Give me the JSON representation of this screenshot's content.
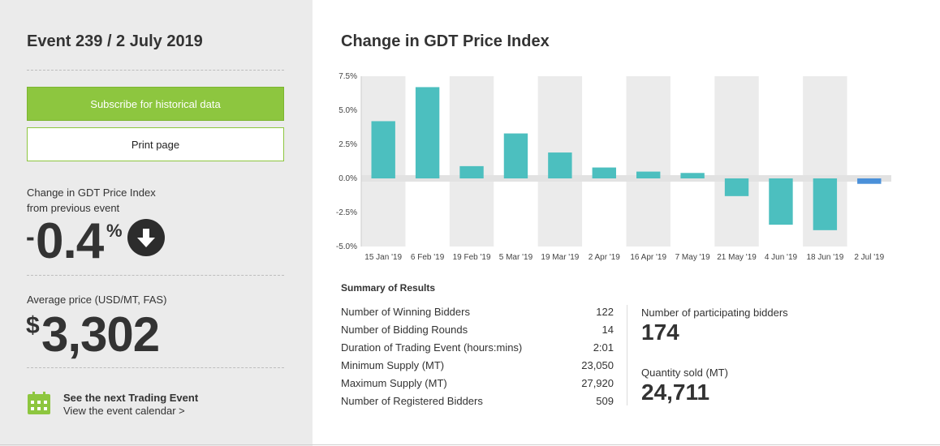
{
  "event": {
    "title": "Event 239 / 2 July 2019"
  },
  "buttons": {
    "subscribe": "Subscribe for historical data",
    "print": "Print page"
  },
  "change": {
    "label_line1": "Change in GDT Price Index",
    "label_line2": "from previous event",
    "sign": "-",
    "value": "0.4",
    "unit": "%",
    "direction": "down"
  },
  "average": {
    "label": "Average price (USD/MT, FAS)",
    "currency": "$",
    "value": "3,302"
  },
  "next_event": {
    "title": "See the next Trading Event",
    "link": "View the event calendar >"
  },
  "chart_section": {
    "title": "Change in GDT Price Index"
  },
  "chart_data": {
    "type": "bar",
    "categories": [
      "15 Jan '19",
      "6 Feb '19",
      "19 Feb '19",
      "5 Mar '19",
      "19 Mar '19",
      "2 Apr '19",
      "16 Apr '19",
      "7 May '19",
      "21 May '19",
      "4 Jun '19",
      "18 Jun '19",
      "2 Jul '19"
    ],
    "values": [
      4.2,
      6.7,
      0.9,
      3.3,
      1.9,
      0.8,
      0.5,
      0.4,
      -1.3,
      -3.4,
      -3.8,
      -0.4
    ],
    "ylim": [
      -5.0,
      7.5
    ],
    "yticks": [
      "7.5%",
      "5.0%",
      "2.5%",
      "0.0%",
      "-2.5%",
      "-5.0%"
    ],
    "ytick_values": [
      7.5,
      5.0,
      2.5,
      0.0,
      -2.5,
      -5.0
    ],
    "colors": {
      "bar": "#4cbfbf",
      "highlight": "#4a90d9",
      "band": "#ebebeb"
    },
    "highlight_index": 11,
    "grid": false
  },
  "summary": {
    "title": "Summary of Results",
    "rows": [
      {
        "label": "Number of Winning Bidders",
        "value": "122"
      },
      {
        "label": "Number of Bidding Rounds",
        "value": "14"
      },
      {
        "label": "Duration of Trading Event (hours:mins)",
        "value": "2:01"
      },
      {
        "label": "Minimum Supply (MT)",
        "value": "23,050"
      },
      {
        "label": "Maximum Supply (MT)",
        "value": "27,920"
      },
      {
        "label": "Number of Registered Bidders",
        "value": "509"
      }
    ]
  },
  "stats": {
    "participating_label": "Number of participating bidders",
    "participating_value": "174",
    "sold_label": "Quantity sold (MT)",
    "sold_value": "24,711"
  },
  "icons": {
    "arrow": "arrow-down-icon",
    "calendar": "calendar-icon"
  },
  "theme": {
    "accent": "#8dc63f",
    "dark": "#2c2c2c"
  }
}
